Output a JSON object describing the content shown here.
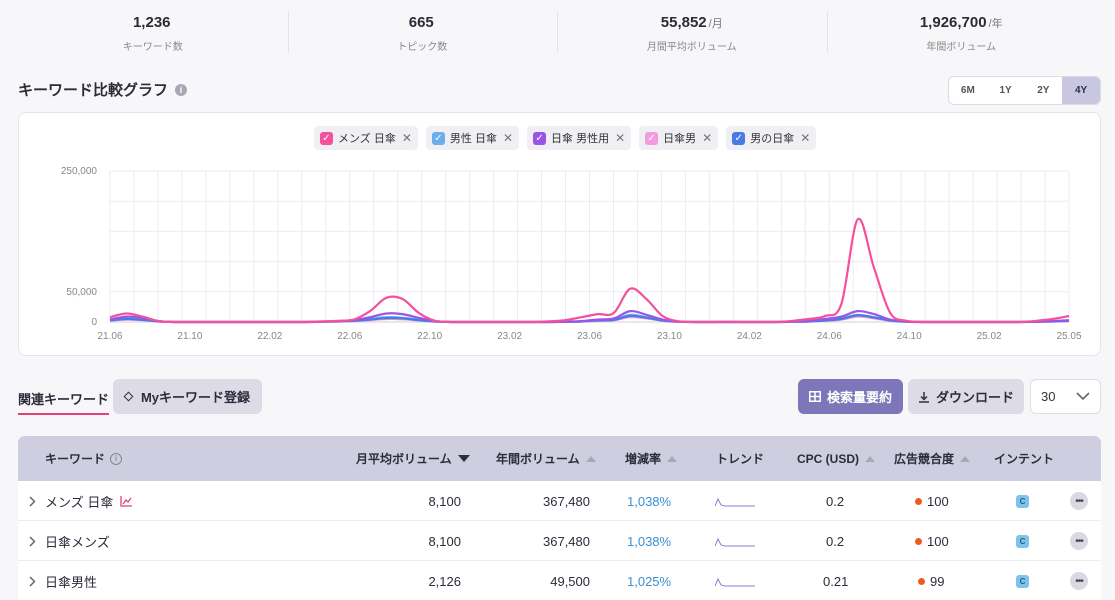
{
  "stats": [
    {
      "value": "1,236",
      "unit": "",
      "label": "キーワード数"
    },
    {
      "value": "665",
      "unit": "",
      "label": "トピック数"
    },
    {
      "value": "55,852",
      "unit": "/月",
      "label": "月間平均ボリューム"
    },
    {
      "value": "1,926,700",
      "unit": "/年",
      "label": "年間ボリューム"
    }
  ],
  "section": {
    "title": "キーワード比較グラフ",
    "info": "i"
  },
  "ranges": [
    "6M",
    "1Y",
    "2Y",
    "4Y"
  ],
  "legend": [
    {
      "label": "メンズ 日傘",
      "color": "#f4509c"
    },
    {
      "label": "男性 日傘",
      "color": "#6aaeea"
    },
    {
      "label": "日傘 男性用",
      "color": "#9a55e8"
    },
    {
      "label": "日傘男",
      "color": "#f49ae0"
    },
    {
      "label": "男の日傘",
      "color": "#4a7be0"
    }
  ],
  "chart_data": {
    "type": "line",
    "x_ticks": [
      "21.06",
      "21.10",
      "22.02",
      "22.06",
      "22.10",
      "23.02",
      "23.06",
      "23.10",
      "24.02",
      "24.06",
      "24.10",
      "25.02",
      "25.05"
    ],
    "y_ticks": [
      "0",
      "50,000",
      "250,000"
    ],
    "ylim": [
      0,
      250000
    ],
    "grid": true,
    "legend_position": "top-center",
    "series": [
      {
        "name": "メンズ 日傘",
        "color": "#f4509c",
        "values": [
          8000,
          14000,
          9000,
          1500,
          0,
          0,
          0,
          0,
          0,
          0,
          0,
          0,
          0,
          1000,
          2000,
          4000,
          18000,
          40000,
          38000,
          15000,
          2000,
          0,
          0,
          0,
          0,
          0,
          0,
          1000,
          3000,
          8000,
          13000,
          15000,
          55000,
          38000,
          10000,
          1000,
          0,
          0,
          500,
          0,
          0,
          0,
          2000,
          5000,
          10000,
          30000,
          170000,
          90000,
          15000,
          2000,
          0,
          0,
          0,
          0,
          0,
          0,
          0,
          2000,
          5000,
          10000
        ]
      },
      {
        "name": "男性 日傘",
        "color": "#6aaeea",
        "values": [
          3000,
          6000,
          4000,
          1000,
          0,
          0,
          0,
          0,
          0,
          0,
          0,
          0,
          0,
          500,
          1000,
          2000,
          5000,
          8000,
          7000,
          4000,
          1000,
          0,
          0,
          0,
          0,
          0,
          0,
          0,
          500,
          1000,
          3000,
          4000,
          12000,
          8000,
          3000,
          500,
          0,
          0,
          0,
          0,
          0,
          0,
          500,
          1000,
          3000,
          6000,
          12000,
          8000,
          3000,
          500,
          0,
          0,
          0,
          0,
          0,
          0,
          0,
          500,
          1000,
          2000
        ]
      },
      {
        "name": "日傘 男性用",
        "color": "#9a55e8",
        "values": [
          4000,
          9000,
          7000,
          1500,
          0,
          0,
          0,
          0,
          0,
          0,
          0,
          0,
          0,
          500,
          1500,
          3000,
          8000,
          14000,
          13000,
          7000,
          1500,
          0,
          0,
          0,
          0,
          0,
          0,
          0,
          500,
          1500,
          4000,
          6000,
          18000,
          12000,
          4000,
          500,
          0,
          0,
          0,
          0,
          0,
          0,
          1000,
          2000,
          5000,
          9000,
          18000,
          13000,
          4000,
          1000,
          0,
          0,
          0,
          0,
          0,
          0,
          0,
          500,
          1500,
          3000
        ]
      },
      {
        "name": "日傘男",
        "color": "#f49ae0",
        "values": [
          2000,
          4000,
          3000,
          800,
          0,
          0,
          0,
          0,
          0,
          0,
          0,
          0,
          0,
          300,
          800,
          1500,
          3000,
          5000,
          4500,
          2500,
          700,
          0,
          0,
          0,
          0,
          0,
          0,
          0,
          300,
          800,
          2000,
          3000,
          8000,
          6000,
          2000,
          300,
          0,
          0,
          0,
          0,
          0,
          0,
          300,
          800,
          2000,
          4000,
          9000,
          6000,
          2000,
          300,
          0,
          0,
          0,
          0,
          0,
          0,
          0,
          300,
          800,
          1500
        ]
      },
      {
        "name": "男の日傘",
        "color": "#4a7be0",
        "values": [
          2500,
          5000,
          3500,
          900,
          0,
          0,
          0,
          0,
          0,
          0,
          0,
          0,
          0,
          300,
          900,
          1800,
          4000,
          6500,
          6000,
          3000,
          800,
          0,
          0,
          0,
          0,
          0,
          0,
          0,
          300,
          900,
          2500,
          3500,
          10000,
          7000,
          2500,
          300,
          0,
          0,
          0,
          0,
          0,
          0,
          300,
          900,
          2500,
          5000,
          11000,
          7500,
          2500,
          300,
          0,
          0,
          0,
          0,
          0,
          0,
          0,
          300,
          900,
          1800
        ]
      }
    ]
  },
  "tabs": {
    "related": "関連キーワード",
    "my_keyword": "Myキーワード登録"
  },
  "actions": {
    "summary": "検索量要約",
    "download": "ダウンロード",
    "page_size": "30"
  },
  "table": {
    "headers": {
      "keyword": "キーワード",
      "monthly": "月平均ボリューム",
      "yearly": "年間ボリューム",
      "rate": "増減率",
      "trend": "トレンド",
      "cpc": "CPC (USD)",
      "competition": "広告競合度",
      "intent": "インテント"
    },
    "rows": [
      {
        "keyword": "メンズ 日傘",
        "monthly": "8,100",
        "yearly": "367,480",
        "rate": "1,038%",
        "cpc": "0.2",
        "competition": "100",
        "intent": "C"
      },
      {
        "keyword": "日傘メンズ",
        "monthly": "8,100",
        "yearly": "367,480",
        "rate": "1,038%",
        "cpc": "0.2",
        "competition": "100",
        "intent": "C"
      },
      {
        "keyword": "日傘男性",
        "monthly": "2,126",
        "yearly": "49,500",
        "rate": "1,025%",
        "cpc": "0.21",
        "competition": "99",
        "intent": "C"
      }
    ]
  }
}
